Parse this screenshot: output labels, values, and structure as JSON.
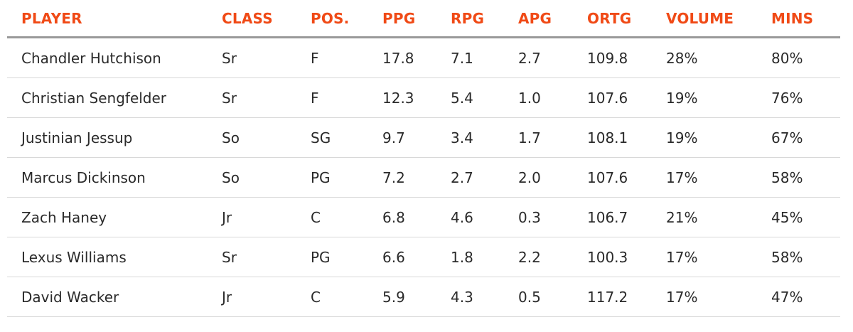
{
  "table": {
    "headers": [
      "PLAYER",
      "CLASS",
      "POS.",
      "PPG",
      "RPG",
      "APG",
      "ORTG",
      "VOLUME",
      "MINS"
    ],
    "rows": [
      [
        "Chandler Hutchison",
        "Sr",
        "F",
        "17.8",
        "7.1",
        "2.7",
        "109.8",
        "28%",
        "80%"
      ],
      [
        "Christian Sengfelder",
        "Sr",
        "F",
        "12.3",
        "5.4",
        "1.0",
        "107.6",
        "19%",
        "76%"
      ],
      [
        "Justinian Jessup",
        "So",
        "SG",
        "9.7",
        "3.4",
        "1.7",
        "108.1",
        "19%",
        "67%"
      ],
      [
        "Marcus Dickinson",
        "So",
        "PG",
        "7.2",
        "2.7",
        "2.0",
        "107.6",
        "17%",
        "58%"
      ],
      [
        "Zach Haney",
        "Jr",
        "C",
        "6.8",
        "4.6",
        "0.3",
        "106.7",
        "21%",
        "45%"
      ],
      [
        "Lexus Williams",
        "Sr",
        "PG",
        "6.6",
        "1.8",
        "2.2",
        "100.3",
        "17%",
        "58%"
      ],
      [
        "David Wacker",
        "Jr",
        "C",
        "5.9",
        "4.3",
        "0.5",
        "117.2",
        "17%",
        "47%"
      ]
    ]
  },
  "colors": {
    "header_text": "#f04a16",
    "body_text": "#2a2a2a",
    "header_rule": "#999999",
    "row_rule": "#d8d8d8"
  }
}
